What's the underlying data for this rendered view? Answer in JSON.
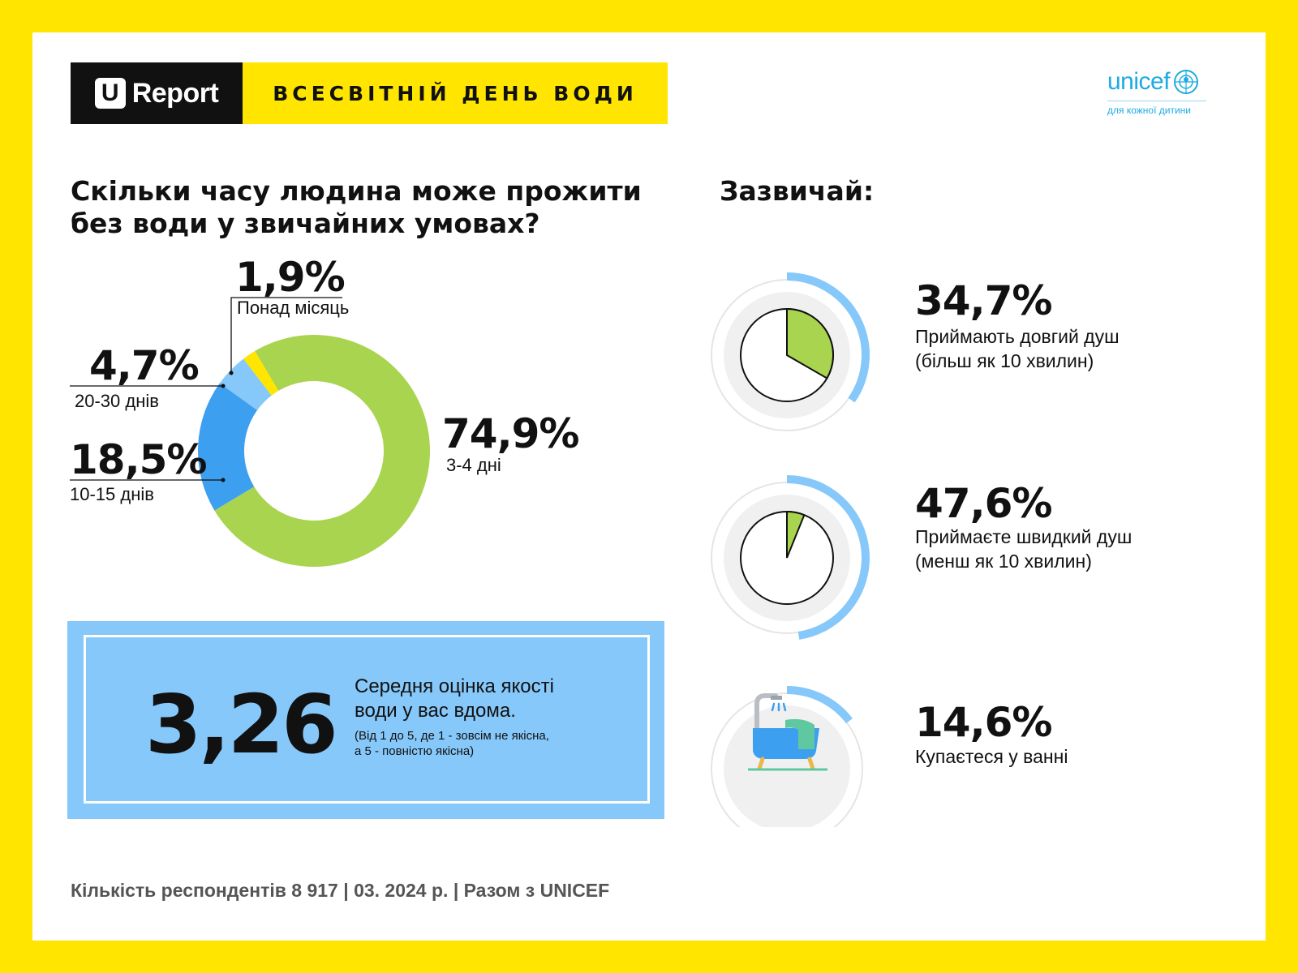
{
  "brand": {
    "u": "U",
    "name": "Report",
    "event": "ВСЕСВІТНІЙ ДЕНЬ ВОДИ"
  },
  "unicef": {
    "word": "unicef",
    "tagline": "для кожної дитини"
  },
  "left": {
    "title_line1": "Скільки часу людина може прожити",
    "title_line2": "без води у звичайних умовах?"
  },
  "right": {
    "title": "Зазвичай:"
  },
  "score": {
    "value": "3,26",
    "text_line1": "Середня оцінка якості",
    "text_line2": "води у вас вдома.",
    "note_line1": "(Від 1 до 5, де 1 - зовсім не якісна,",
    "note_line2": "а 5 - повністю якісна)"
  },
  "stats": [
    {
      "pct": "34,7%",
      "line1": "Приймають довгий душ",
      "line2": "(більш як 10 хвилин)",
      "value": 34.7
    },
    {
      "pct": "47,6%",
      "line1": "Приймаєте швидкий душ",
      "line2": "(менш як 10 хвилин)",
      "value": 47.6
    },
    {
      "pct": "14,6%",
      "line1": "Купаєтеся у ванні",
      "line2": "",
      "value": 14.6
    }
  ],
  "footer": "Кількість респондентів 8 917 | 03. 2024 р. | Разом з UNICEF",
  "colors": {
    "green": "#A8D44F",
    "dark_blue": "#3D9FEF",
    "light_blue": "#86C8FA",
    "yellow": "#FFE500",
    "ring": "#86C8FA"
  },
  "chart_data": [
    {
      "type": "pie",
      "title": "Скільки часу людина може прожити без води у звичайних умовах?",
      "categories": [
        "3-4 дні",
        "10-15 днів",
        "20-30 днів",
        "Понад місяць"
      ],
      "values": [
        74.9,
        18.5,
        4.7,
        1.9
      ],
      "labels": [
        "74,9%",
        "18,5%",
        "4,7%",
        "1,9%"
      ],
      "colors": [
        "#A8D44F",
        "#3D9FEF",
        "#86C8FA",
        "#FFE500"
      ]
    },
    {
      "type": "pie",
      "title": "Зазвичай:",
      "categories": [
        "Приймають довгий душ (більш як 10 хвилин)",
        "Приймаєте швидкий душ (менш як 10 хвилин)",
        "Купаєтеся у ванні"
      ],
      "values": [
        34.7,
        47.6,
        14.6
      ]
    }
  ]
}
